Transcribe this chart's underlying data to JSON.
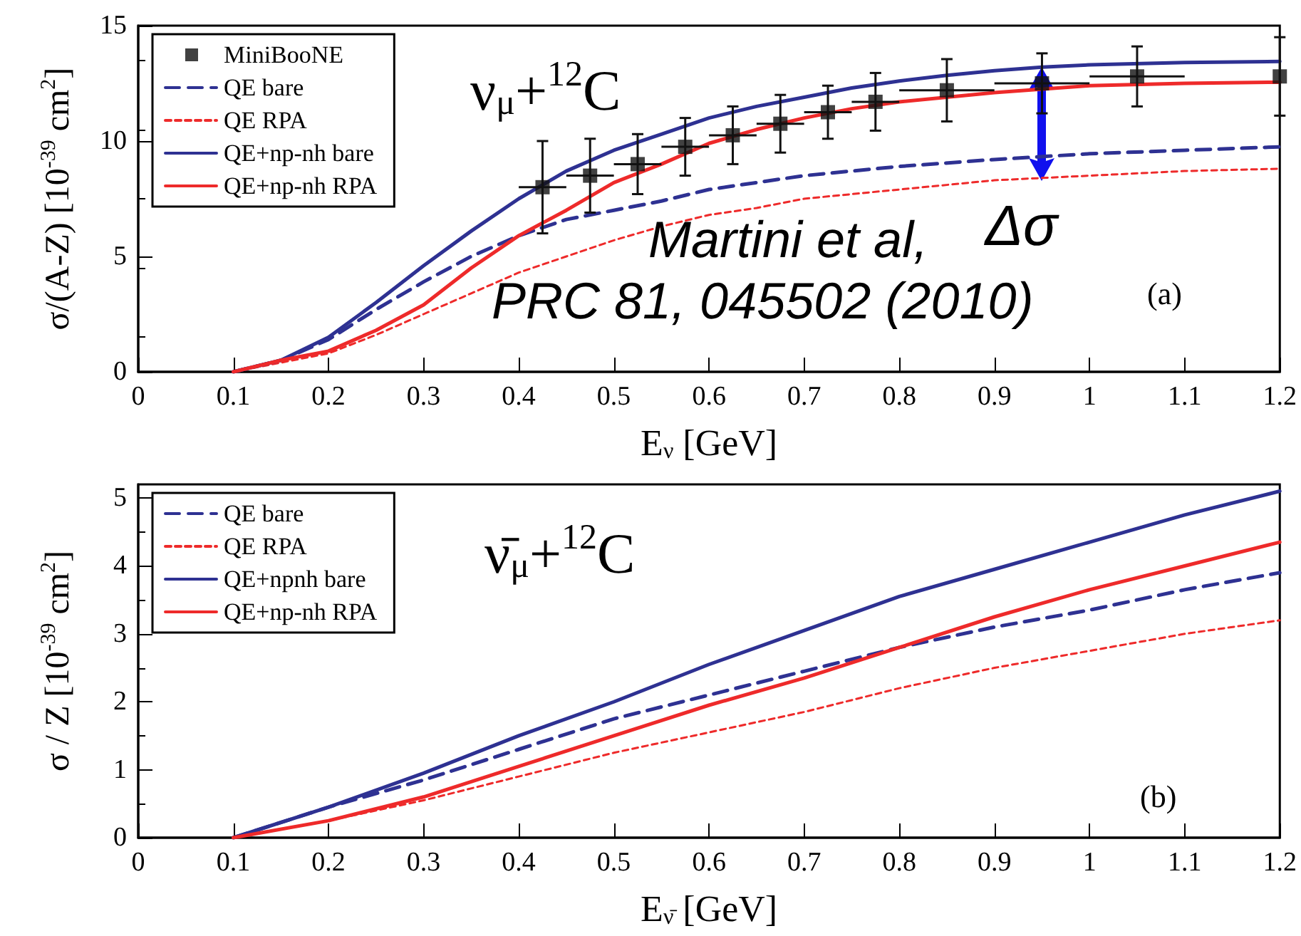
{
  "chart_data": [
    {
      "type": "line",
      "xlabel": "E$_{ν}$ [GeV]",
      "ylabel": "σ/(A-Z) [10$^{-39}$ cm$^{2}$]",
      "xlim": [
        0,
        1.2
      ],
      "ylim": [
        0,
        15
      ],
      "xticks": [
        0,
        0.1,
        0.2,
        0.3,
        0.4,
        0.5,
        0.6,
        0.7,
        0.8,
        0.9,
        1,
        1.1,
        1.2
      ],
      "yticks": [
        0,
        5,
        10,
        15
      ],
      "legend": "top left",
      "annotations": [
        "ν$_{μ}$+$^{12}$C",
        "Martini et al,",
        "PRC 81, 045502 (2010)",
        {
          "text": "Δσ",
          "x": 0.95,
          "y": 13.2
        },
        "(a)"
      ],
      "series": [
        {
          "name": "MiniBooNE",
          "type": "scatter",
          "marker": "square",
          "color": "#111111",
          "x": [
            0.425,
            0.475,
            0.525,
            0.575,
            0.625,
            0.675,
            0.725,
            0.775,
            0.85,
            0.95,
            1.05,
            1.2
          ],
          "values": [
            8.0,
            8.5,
            9.0,
            9.75,
            10.25,
            10.75,
            11.25,
            11.7,
            12.2,
            12.5,
            12.8,
            12.8
          ],
          "errors": [
            2.0,
            1.6,
            1.3,
            1.25,
            1.25,
            1.25,
            1.15,
            1.25,
            1.35,
            1.3,
            1.3,
            1.7
          ],
          "xerrors": [
            0.025,
            0.025,
            0.025,
            0.025,
            0.025,
            0.025,
            0.025,
            0.025,
            0.05,
            0.05,
            0.05,
            null
          ]
        },
        {
          "name": "QE bare",
          "line_style": "dashed",
          "marker": "none",
          "color": "#2e3192",
          "x": [
            0.1,
            0.15,
            0.2,
            0.25,
            0.3,
            0.35,
            0.4,
            0.45,
            0.5,
            0.55,
            0.6,
            0.65,
            0.7,
            0.75,
            0.8,
            0.9,
            1.0,
            1.1,
            1.2
          ],
          "values": [
            0,
            0.5,
            1.4,
            2.7,
            3.9,
            5.0,
            5.9,
            6.6,
            7.0,
            7.4,
            7.9,
            8.2,
            8.5,
            8.7,
            8.9,
            9.2,
            9.45,
            9.6,
            9.75
          ]
        },
        {
          "name": "QE RPA",
          "line_style": "dotted",
          "marker": "none",
          "color": "#ee2a2a",
          "x": [
            0.1,
            0.15,
            0.2,
            0.25,
            0.3,
            0.35,
            0.4,
            0.45,
            0.5,
            0.55,
            0.6,
            0.65,
            0.7,
            0.8,
            0.9,
            1.0,
            1.1,
            1.2
          ],
          "values": [
            0,
            0.4,
            0.8,
            1.6,
            2.5,
            3.4,
            4.3,
            5.0,
            5.7,
            6.3,
            6.8,
            7.1,
            7.5,
            7.9,
            8.3,
            8.5,
            8.7,
            8.8
          ]
        },
        {
          "name": "QE+np-nh bare",
          "line_style": "solid",
          "marker": "none",
          "color": "#2e3192",
          "x": [
            0.1,
            0.15,
            0.2,
            0.25,
            0.3,
            0.35,
            0.4,
            0.45,
            0.5,
            0.55,
            0.6,
            0.65,
            0.7,
            0.75,
            0.8,
            0.85,
            0.9,
            0.95,
            1.0,
            1.1,
            1.2
          ],
          "values": [
            0,
            0.5,
            1.5,
            3.0,
            4.6,
            6.1,
            7.5,
            8.7,
            9.6,
            10.3,
            11.0,
            11.5,
            11.9,
            12.3,
            12.6,
            12.85,
            13.05,
            13.2,
            13.3,
            13.4,
            13.45
          ]
        },
        {
          "name": "QE+np-nh RPA",
          "line_style": "solid",
          "marker": "none",
          "color": "#ee2a2a",
          "x": [
            0.1,
            0.15,
            0.2,
            0.25,
            0.3,
            0.35,
            0.4,
            0.45,
            0.5,
            0.55,
            0.6,
            0.65,
            0.7,
            0.75,
            0.8,
            0.9,
            1.0,
            1.1,
            1.2
          ],
          "values": [
            0,
            0.5,
            0.9,
            1.8,
            2.9,
            4.5,
            5.9,
            7.0,
            8.2,
            9.0,
            9.9,
            10.5,
            11.0,
            11.4,
            11.7,
            12.1,
            12.4,
            12.5,
            12.55
          ]
        }
      ]
    },
    {
      "type": "line",
      "xlabel": "E$_{ν̄}$ [GeV]",
      "ylabel": "σ / Z [10$^{-39}$ cm$^{2}$]",
      "xlim": [
        0,
        1.2
      ],
      "ylim": [
        0,
        5.2
      ],
      "xticks": [
        0,
        0.1,
        0.2,
        0.3,
        0.4,
        0.5,
        0.6,
        0.7,
        0.8,
        0.9,
        1,
        1.1,
        1.2
      ],
      "yticks": [
        0,
        1,
        2,
        3,
        4,
        5
      ],
      "legend": "top left",
      "annotations": [
        "ν̄$_{μ}$+$^{12}$C",
        "(b)"
      ],
      "series": [
        {
          "name": "QE bare",
          "line_style": "dashed",
          "marker": "none",
          "color": "#2e3192",
          "x": [
            0.1,
            0.2,
            0.3,
            0.4,
            0.5,
            0.6,
            0.7,
            0.8,
            0.9,
            1.0,
            1.1,
            1.2
          ],
          "values": [
            0,
            0.45,
            0.85,
            1.3,
            1.75,
            2.1,
            2.45,
            2.8,
            3.1,
            3.35,
            3.65,
            3.9
          ]
        },
        {
          "name": "QE RPA",
          "line_style": "dotted",
          "marker": "none",
          "color": "#ee2a2a",
          "x": [
            0.1,
            0.2,
            0.3,
            0.4,
            0.5,
            0.6,
            0.7,
            0.8,
            0.9,
            1.0,
            1.1,
            1.2
          ],
          "values": [
            0,
            0.25,
            0.55,
            0.9,
            1.25,
            1.55,
            1.85,
            2.2,
            2.5,
            2.75,
            3.0,
            3.2
          ]
        },
        {
          "name": "QE+npnh bare",
          "line_style": "solid",
          "marker": "none",
          "color": "#2e3192",
          "x": [
            0.1,
            0.2,
            0.3,
            0.4,
            0.5,
            0.6,
            0.7,
            0.8,
            0.9,
            1.0,
            1.1,
            1.2
          ],
          "values": [
            0,
            0.45,
            0.95,
            1.5,
            2.0,
            2.55,
            3.05,
            3.55,
            3.95,
            4.35,
            4.75,
            5.1
          ]
        },
        {
          "name": "QE+np-nh RPA",
          "line_style": "solid",
          "marker": "none",
          "color": "#ee2a2a",
          "x": [
            0.1,
            0.2,
            0.3,
            0.4,
            0.5,
            0.6,
            0.7,
            0.8,
            0.9,
            1.0,
            1.1,
            1.2
          ],
          "values": [
            0,
            0.25,
            0.6,
            1.05,
            1.5,
            1.95,
            2.35,
            2.8,
            3.25,
            3.65,
            4.0,
            4.35
          ]
        }
      ]
    }
  ]
}
